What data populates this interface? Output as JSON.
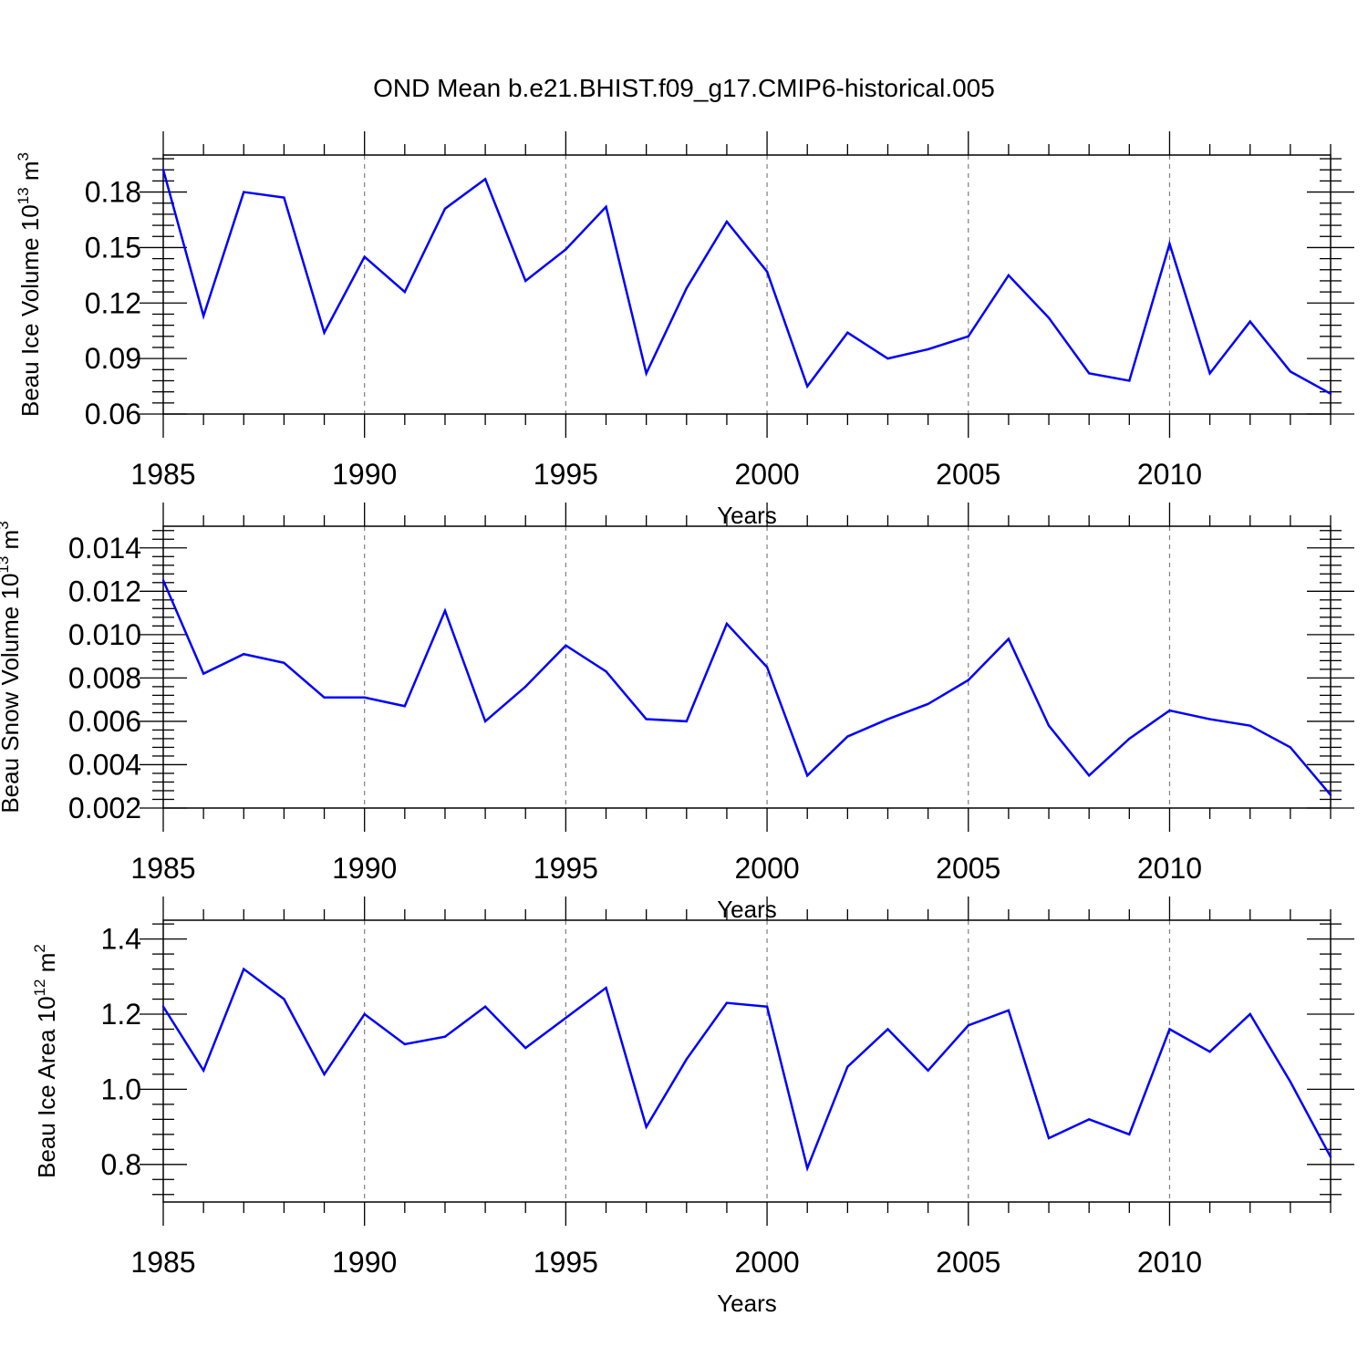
{
  "title": "OND Mean b.e21.BHIST.f09_g17.CMIP6-historical.005",
  "colors": {
    "series": "#0000ff",
    "axes": "#000000",
    "grid": "#7f7f7f"
  },
  "chart_data": [
    {
      "type": "line",
      "title": "",
      "xlabel": "Years",
      "ylabel": {
        "text": "Beau Ice Volume 10",
        "exp": "13",
        "unit": " m",
        "unit_exp": "3"
      },
      "xlim": [
        1985,
        2014
      ],
      "ylim": [
        0.06,
        0.2
      ],
      "x_ticks": [
        1985,
        1990,
        1995,
        2000,
        2005,
        2010
      ],
      "x_tick_labels": [
        "1985",
        "1990",
        "1995",
        "2000",
        "2005",
        "2010"
      ],
      "y_ticks": [
        0.06,
        0.09,
        0.12,
        0.15,
        0.18
      ],
      "y_tick_labels": [
        "0.06",
        "0.09",
        "0.12",
        "0.15",
        "0.18"
      ],
      "grid": "x-dashed",
      "series": [
        {
          "name": "Beau Ice Volume",
          "x": [
            1985,
            1986,
            1987,
            1988,
            1989,
            1990,
            1991,
            1992,
            1993,
            1994,
            1995,
            1996,
            1997,
            1998,
            1999,
            2000,
            2001,
            2002,
            2003,
            2004,
            2005,
            2006,
            2007,
            2008,
            2009,
            2010,
            2011,
            2012,
            2013,
            2014
          ],
          "values": [
            0.192,
            0.113,
            0.18,
            0.177,
            0.104,
            0.145,
            0.126,
            0.171,
            0.187,
            0.132,
            0.149,
            0.172,
            0.082,
            0.128,
            0.164,
            0.137,
            0.075,
            0.104,
            0.09,
            0.095,
            0.102,
            0.135,
            0.112,
            0.082,
            0.078,
            0.152,
            0.082,
            0.11,
            0.083,
            0.071
          ]
        }
      ]
    },
    {
      "type": "line",
      "title": "",
      "xlabel": "Years",
      "ylabel": {
        "text": "Beau Snow Volume 10",
        "exp": "13",
        "unit": " m",
        "unit_exp": "3"
      },
      "xlim": [
        1985,
        2014
      ],
      "ylim": [
        0.002,
        0.015
      ],
      "x_ticks": [
        1985,
        1990,
        1995,
        2000,
        2005,
        2010
      ],
      "x_tick_labels": [
        "1985",
        "1990",
        "1995",
        "2000",
        "2005",
        "2010"
      ],
      "y_ticks": [
        0.002,
        0.004,
        0.006,
        0.008,
        0.01,
        0.012,
        0.014
      ],
      "y_tick_labels": [
        "0.002",
        "0.004",
        "0.006",
        "0.008",
        "0.010",
        "0.012",
        "0.014"
      ],
      "grid": "x-dashed",
      "series": [
        {
          "name": "Beau Snow Volume",
          "x": [
            1985,
            1986,
            1987,
            1988,
            1989,
            1990,
            1991,
            1992,
            1993,
            1994,
            1995,
            1996,
            1997,
            1998,
            1999,
            2000,
            2001,
            2002,
            2003,
            2004,
            2005,
            2006,
            2007,
            2008,
            2009,
            2010,
            2011,
            2012,
            2013,
            2014
          ],
          "values": [
            0.0125,
            0.0082,
            0.0091,
            0.0087,
            0.0071,
            0.0071,
            0.0067,
            0.0111,
            0.006,
            0.0076,
            0.0095,
            0.0083,
            0.0061,
            0.006,
            0.0105,
            0.0085,
            0.0035,
            0.0053,
            0.0061,
            0.0068,
            0.0079,
            0.0098,
            0.0058,
            0.0035,
            0.0052,
            0.0065,
            0.0061,
            0.0058,
            0.0048,
            0.0026
          ]
        }
      ]
    },
    {
      "type": "line",
      "title": "",
      "xlabel": "Years",
      "ylabel": {
        "text": "Beau Ice Area 10",
        "exp": "12",
        "unit": " m",
        "unit_exp": "2"
      },
      "xlim": [
        1985,
        2014
      ],
      "ylim": [
        0.7,
        1.45
      ],
      "x_ticks": [
        1985,
        1990,
        1995,
        2000,
        2005,
        2010
      ],
      "x_tick_labels": [
        "1985",
        "1990",
        "1995",
        "2000",
        "2005",
        "2010"
      ],
      "y_ticks": [
        0.8,
        1.0,
        1.2,
        1.4
      ],
      "y_tick_labels": [
        "0.8",
        "1.0",
        "1.2",
        "1.4"
      ],
      "grid": "x-dashed",
      "series": [
        {
          "name": "Beau Ice Area",
          "x": [
            1985,
            1986,
            1987,
            1988,
            1989,
            1990,
            1991,
            1992,
            1993,
            1994,
            1995,
            1996,
            1997,
            1998,
            1999,
            2000,
            2001,
            2002,
            2003,
            2004,
            2005,
            2006,
            2007,
            2008,
            2009,
            2010,
            2011,
            2012,
            2013,
            2014
          ],
          "values": [
            1.22,
            1.05,
            1.32,
            1.24,
            1.04,
            1.2,
            1.12,
            1.14,
            1.22,
            1.11,
            1.19,
            1.27,
            0.9,
            1.08,
            1.23,
            1.22,
            0.79,
            1.06,
            1.16,
            1.05,
            1.17,
            1.21,
            0.87,
            0.92,
            0.88,
            1.16,
            1.1,
            1.2,
            1.02,
            0.82
          ]
        }
      ]
    }
  ]
}
